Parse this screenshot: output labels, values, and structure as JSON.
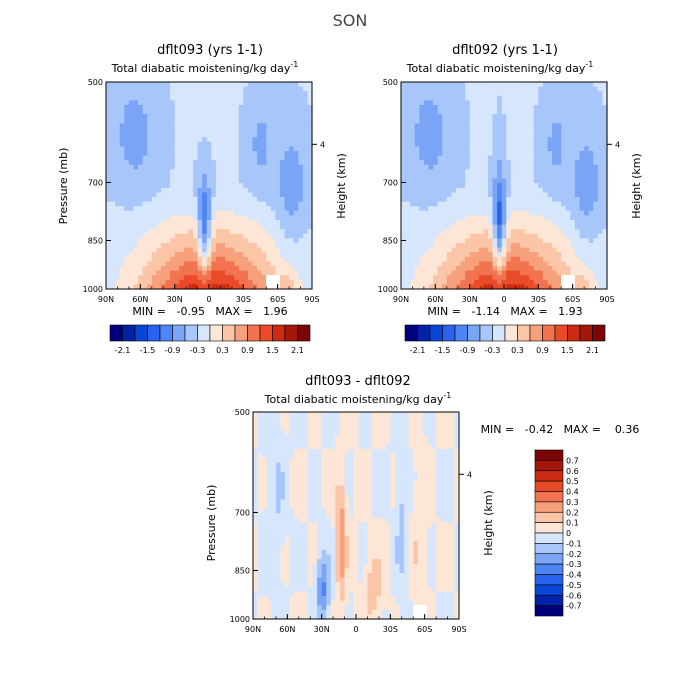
{
  "figure": {
    "season": "SON",
    "diff_minmax": "MIN =   -0.42   MAX =    0.36"
  },
  "chart_data": [
    {
      "type": "heatmap",
      "title": "dflt093 (yrs 1-1)",
      "subtitle": "Total diabatic moistening/kg day",
      "subtitle_sup": "-1",
      "ylabel": "Pressure (mb)",
      "y2label": "Height (km)",
      "x_ticks": [
        "90N",
        "60N",
        "30N",
        "0",
        "30S",
        "60S",
        "90S"
      ],
      "y_ticks": [
        "500",
        "700",
        "850",
        "1000"
      ],
      "y2_ticks": [
        "4"
      ],
      "xlim": [
        90,
        -90
      ],
      "ylim": [
        1000,
        500
      ],
      "min": -0.95,
      "max": 1.96,
      "minmax_text": "MIN =   -0.95   MAX =   1.96",
      "colorbar": {
        "levels": [
          -2.1,
          -1.8,
          -1.5,
          -1.2,
          -0.9,
          -0.6,
          -0.3,
          0,
          0.3,
          0.6,
          0.9,
          1.2,
          1.5,
          1.8,
          2.1
        ],
        "labels": [
          "-2.1",
          "-1.5",
          "-0.9",
          "-0.3",
          "0.3",
          "0.9",
          "1.5",
          "2.1"
        ]
      }
    },
    {
      "type": "heatmap",
      "title": "dflt092 (yrs 1-1)",
      "subtitle": "Total diabatic moistening/kg day",
      "subtitle_sup": "-1",
      "ylabel": "Pressure (mb)",
      "y2label": "Height (km)",
      "x_ticks": [
        "90N",
        "60N",
        "30N",
        "0",
        "30S",
        "60S",
        "90S"
      ],
      "y_ticks": [
        "500",
        "700",
        "850",
        "1000"
      ],
      "y2_ticks": [
        "4"
      ],
      "xlim": [
        90,
        -90
      ],
      "ylim": [
        1000,
        500
      ],
      "min": -1.14,
      "max": 1.93,
      "minmax_text": "MIN =   -1.14   MAX =   1.93",
      "colorbar": {
        "levels": [
          -2.1,
          -1.8,
          -1.5,
          -1.2,
          -0.9,
          -0.6,
          -0.3,
          0,
          0.3,
          0.6,
          0.9,
          1.2,
          1.5,
          1.8,
          2.1
        ],
        "labels": [
          "-2.1",
          "-1.5",
          "-0.9",
          "-0.3",
          "0.3",
          "0.9",
          "1.5",
          "2.1"
        ]
      }
    },
    {
      "type": "heatmap",
      "title": "dflt093 - dflt092",
      "subtitle": "Total diabatic moistening/kg day",
      "subtitle_sup": "-1",
      "ylabel": "Pressure (mb)",
      "y2label": "Height (km)",
      "x_ticks": [
        "90N",
        "60N",
        "30N",
        "0",
        "30S",
        "60S",
        "90S"
      ],
      "y_ticks": [
        "500",
        "700",
        "850",
        "1000"
      ],
      "y2_ticks": [
        "4"
      ],
      "xlim": [
        90,
        -90
      ],
      "ylim": [
        1000,
        500
      ],
      "min": -0.42,
      "max": 0.36,
      "colorbar": {
        "levels": [
          -0.7,
          -0.6,
          -0.5,
          -0.4,
          -0.3,
          -0.2,
          -0.1,
          0,
          0.1,
          0.2,
          0.3,
          0.4,
          0.5,
          0.6,
          0.7
        ],
        "labels": [
          "0.7",
          "0.6",
          "0.5",
          "0.4",
          "0.3",
          "0.2",
          "0.1",
          "0",
          "-0.1",
          "-0.2",
          "-0.3",
          "-0.4",
          "-0.5",
          "-0.6",
          "-0.7"
        ]
      }
    }
  ],
  "colors": {
    "scale": [
      "#00007f",
      "#0022a8",
      "#0a46d6",
      "#2a62f0",
      "#4d84f6",
      "#7aa5f6",
      "#a7c6f9",
      "#d6e6fc",
      "#fde6d6",
      "#fbc6a8",
      "#f7a07c",
      "#f27350",
      "#e94a28",
      "#cc2a12",
      "#a4150a",
      "#7a0606"
    ]
  }
}
